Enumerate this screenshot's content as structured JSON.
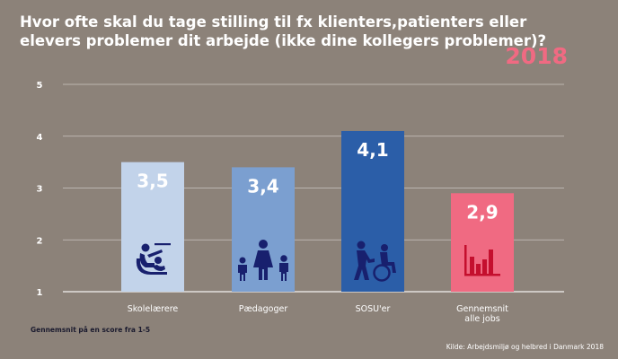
{
  "header": {
    "title_lines": [
      "Hvor ofte skal du tage stilling til fx klienters,patienters eller",
      "elevers problemer  dit arbejde (ikke dine kollegers problemer)?"
    ],
    "year": "2018"
  },
  "chart_data": {
    "type": "bar",
    "categories": [
      [
        "Skolelærere"
      ],
      [
        "Pædagoger"
      ],
      [
        "SOSU'er"
      ],
      [
        "Gennemsnit",
        "alle jobs"
      ]
    ],
    "values": [
      3.5,
      3.4,
      4.1,
      2.9
    ],
    "value_labels": [
      "3,5",
      "3,4",
      "4,1",
      "2,9"
    ],
    "bar_colors": [
      "#c2d3ea",
      "#7b9fd0",
      "#2b5ea8",
      "#f06a82"
    ],
    "icons": [
      "teacher-icon",
      "family-icon",
      "caregiver-wheelchair-icon",
      "bar-chart-icon"
    ],
    "icon_colors": [
      "#18206e",
      "#18206e",
      "#18206e",
      "#c40f2e"
    ],
    "y_ticks": [
      "1",
      "2",
      "3",
      "4",
      "5"
    ],
    "ylim": [
      1,
      5
    ],
    "grid": true
  },
  "footer": {
    "note": "Gennemsnit på en score fra 1-5",
    "source": "Kilde: Arbejdsmiljø og helbred i Danmark 2018"
  }
}
